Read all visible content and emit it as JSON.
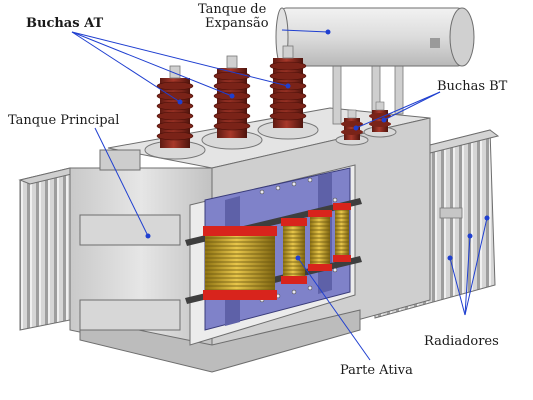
{
  "labels": {
    "buchas_at": "Buchas AT",
    "tanque_expansao_1": "Tanque de",
    "tanque_expansao_2": "Expansão",
    "buchas_bt": "Buchas BT",
    "tanque_principal": "Tanque Principal",
    "radiadores": "Radiadores",
    "parte_ativa": "Parte Ativa"
  },
  "colors": {
    "tank": "#dcdcdc",
    "tank_shade": "#bdbdbd",
    "core": "#7c7fc6",
    "bushing": "#8c2a1e",
    "coil_copper": "#c9a227",
    "coil_red": "#d8241c",
    "leader": "#1f3fd0"
  }
}
